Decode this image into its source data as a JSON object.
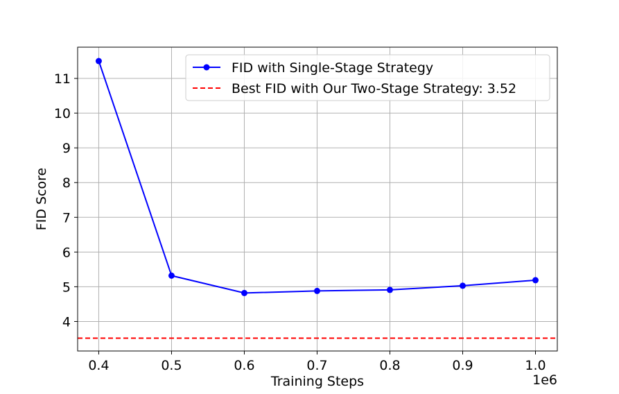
{
  "chart_data": {
    "type": "line",
    "xlabel": "Training Steps",
    "ylabel": "FID Score",
    "x_offset_label": "1e6",
    "x_ticks": [
      "0.4",
      "0.5",
      "0.6",
      "0.7",
      "0.8",
      "0.9",
      "1.0"
    ],
    "y_ticks": [
      "4",
      "5",
      "6",
      "7",
      "8",
      "9",
      "10",
      "11"
    ],
    "xlim": [
      371000,
      1030000
    ],
    "ylim": [
      3.15,
      11.9
    ],
    "grid": true,
    "legend_position": "upper right",
    "series": [
      {
        "name": "FID with Single-Stage Strategy",
        "color": "#0000ff",
        "marker": "circle",
        "x": [
          400000,
          500000,
          600000,
          700000,
          800000,
          900000,
          1000000
        ],
        "y": [
          11.5,
          5.32,
          4.82,
          4.88,
          4.91,
          5.03,
          5.19
        ]
      }
    ],
    "reference_lines": [
      {
        "name": "Best FID with Our Two-Stage Strategy: 3.52",
        "color": "#ff0000",
        "style": "dashed",
        "y": 3.52
      }
    ]
  }
}
